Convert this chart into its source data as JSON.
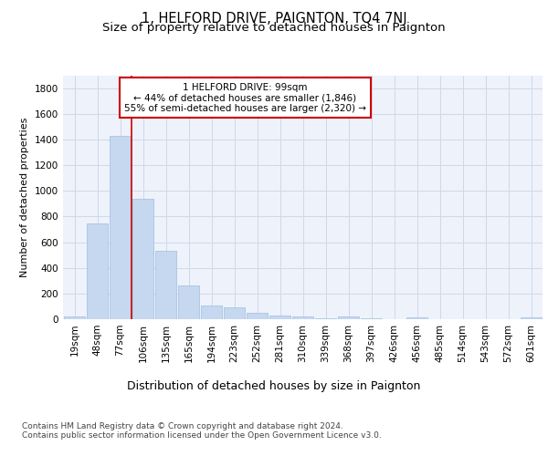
{
  "title1": "1, HELFORD DRIVE, PAIGNTON, TQ4 7NJ",
  "title2": "Size of property relative to detached houses in Paignton",
  "xlabel": "Distribution of detached houses by size in Paignton",
  "ylabel": "Number of detached properties",
  "categories": [
    "19sqm",
    "48sqm",
    "77sqm",
    "106sqm",
    "135sqm",
    "165sqm",
    "194sqm",
    "223sqm",
    "252sqm",
    "281sqm",
    "310sqm",
    "339sqm",
    "368sqm",
    "397sqm",
    "426sqm",
    "456sqm",
    "485sqm",
    "514sqm",
    "543sqm",
    "572sqm",
    "601sqm"
  ],
  "values": [
    22,
    745,
    1430,
    940,
    530,
    265,
    105,
    95,
    50,
    28,
    20,
    5,
    18,
    5,
    3,
    12,
    3,
    2,
    2,
    2,
    15
  ],
  "bar_color": "#c5d8f0",
  "bar_edge_color": "#a0bedd",
  "grid_color": "#d0d8e8",
  "background_color": "#eef2fb",
  "vline_color": "#cc0000",
  "annotation_text": "1 HELFORD DRIVE: 99sqm\n← 44% of detached houses are smaller (1,846)\n55% of semi-detached houses are larger (2,320) →",
  "annotation_box_color": "#ffffff",
  "annotation_border_color": "#cc0000",
  "footer_text": "Contains HM Land Registry data © Crown copyright and database right 2024.\nContains public sector information licensed under the Open Government Licence v3.0.",
  "ylim": [
    0,
    1900
  ],
  "yticks": [
    0,
    200,
    400,
    600,
    800,
    1000,
    1200,
    1400,
    1600,
    1800
  ],
  "title1_fontsize": 10.5,
  "title2_fontsize": 9.5,
  "xlabel_fontsize": 9,
  "ylabel_fontsize": 8,
  "tick_fontsize": 7.5,
  "ann_fontsize": 7.5,
  "footer_fontsize": 6.5
}
